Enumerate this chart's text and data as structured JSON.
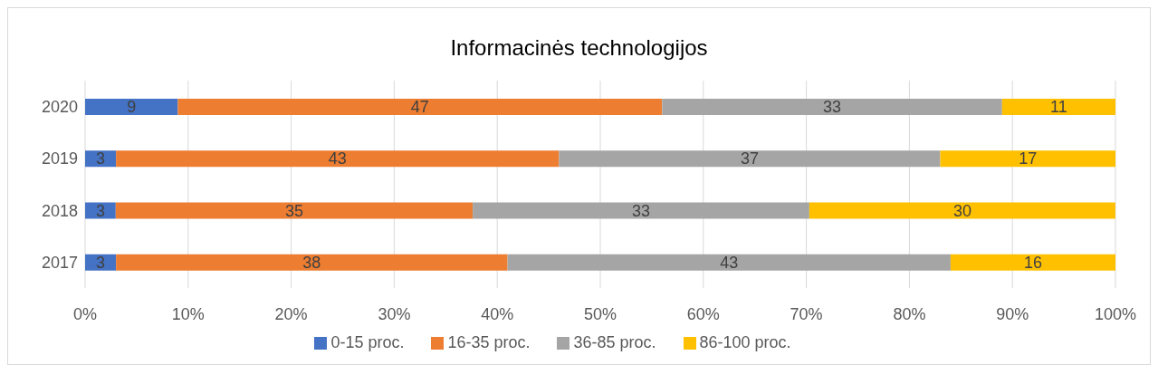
{
  "chart_data": {
    "type": "bar",
    "title": "Informacinės technologijos",
    "orientation": "horizontal",
    "stacked": true,
    "categories": [
      "2020",
      "2019",
      "2018",
      "2017"
    ],
    "series": [
      {
        "name": "0-15 proc.",
        "color": "#4472c4",
        "values": [
          9,
          3,
          2.97,
          3
        ],
        "value_labels": [
          "9",
          "3",
          "3",
          "3"
        ]
      },
      {
        "name": "16-35 proc.",
        "color": "#ed7d31",
        "values": [
          47,
          43,
          34.65,
          38
        ],
        "value_labels": [
          "47",
          "43",
          "35",
          "38"
        ]
      },
      {
        "name": "36-85 proc.",
        "color": "#a5a5a5",
        "values": [
          33,
          37,
          32.67,
          43
        ],
        "value_labels": [
          "33",
          "37",
          "33",
          "43"
        ]
      },
      {
        "name": "86-100 proc.",
        "color": "#ffc000",
        "values": [
          11,
          17,
          29.7,
          16
        ],
        "value_labels": [
          "11",
          "17",
          "30",
          "16"
        ]
      }
    ],
    "xlim": [
      0,
      100
    ],
    "xticks": [
      {
        "value": 0,
        "label": "0%"
      },
      {
        "value": 10,
        "label": "10%"
      },
      {
        "value": 20,
        "label": "20%"
      },
      {
        "value": 30,
        "label": "30%"
      },
      {
        "value": 40,
        "label": "40%"
      },
      {
        "value": 50,
        "label": "50%"
      },
      {
        "value": 60,
        "label": "60%"
      },
      {
        "value": 70,
        "label": "70%"
      },
      {
        "value": 80,
        "label": "80%"
      },
      {
        "value": 90,
        "label": "90%"
      },
      {
        "value": 100,
        "label": "100%"
      }
    ],
    "grid": "x",
    "legend": "bottom"
  }
}
